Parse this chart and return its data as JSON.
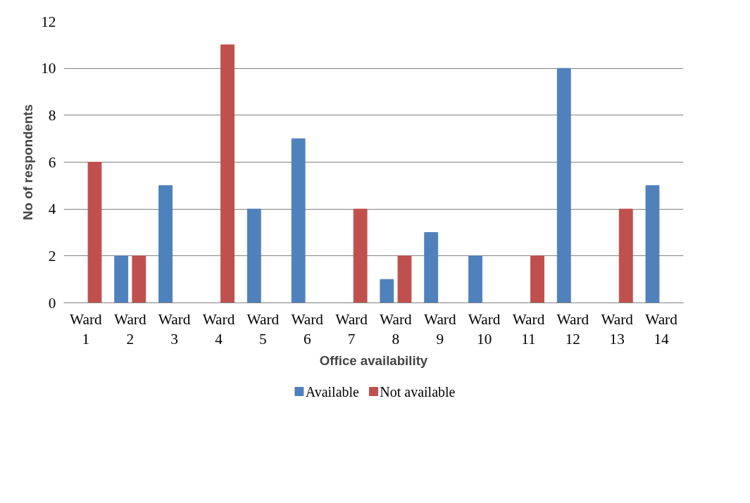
{
  "chart_data": {
    "type": "bar",
    "xlabel": "Office availability",
    "ylabel": "No of respondents",
    "categories": [
      "Ward 1",
      "Ward 2",
      "Ward 3",
      "Ward 4",
      "Ward 5",
      "Ward 6",
      "Ward 7",
      "Ward 8",
      "Ward 9",
      "Ward 10",
      "Ward 11",
      "Ward 12",
      "Ward 13",
      "Ward 14"
    ],
    "series": [
      {
        "name": "Available",
        "color": "#4f81bd",
        "values": [
          0,
          2,
          5,
          0,
          4,
          7,
          0,
          1,
          3,
          2,
          0,
          10,
          0,
          5
        ]
      },
      {
        "name": "Not available",
        "color": "#c0504d",
        "values": [
          6,
          2,
          0,
          11,
          0,
          0,
          4,
          2,
          0,
          0,
          2,
          0,
          4,
          0
        ]
      }
    ],
    "ylim": [
      0,
      12
    ],
    "yticks": [
      0,
      2,
      4,
      6,
      8,
      10,
      12
    ],
    "grid": "y",
    "legend": "bottom"
  }
}
